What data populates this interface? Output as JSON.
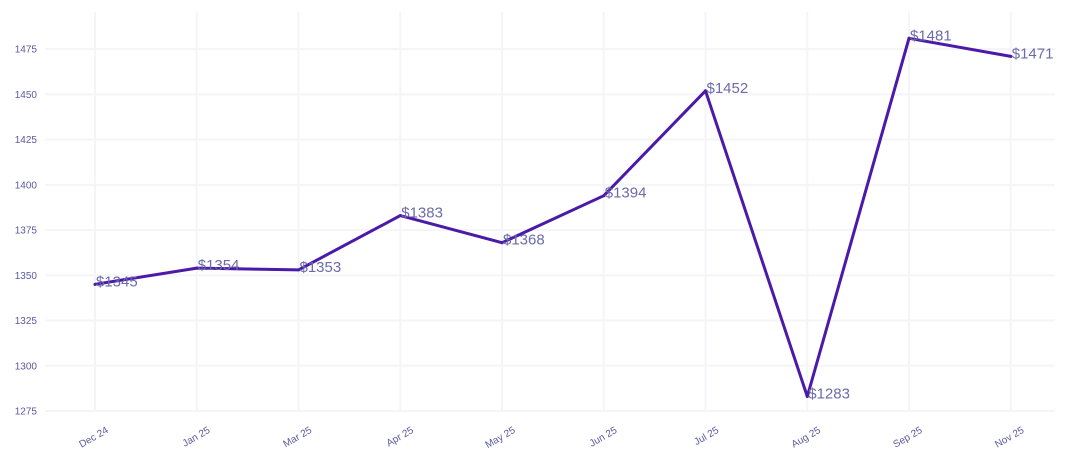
{
  "chart_data": {
    "type": "line",
    "title": "",
    "xlabel": "",
    "ylabel": "",
    "categories": [
      "Dec 24",
      "Jan 25",
      "Mar 25",
      "Apr 25",
      "May 25",
      "Jun 25",
      "Jul 25",
      "Aug 25",
      "Sep 25",
      "Nov 25"
    ],
    "series": [
      {
        "values": [
          1345,
          1354,
          1353,
          1383,
          1368,
          1394,
          1452,
          1283,
          1481,
          1471
        ],
        "color": "#4b1aa8"
      }
    ],
    "data_labels": [
      "$1345",
      "$1354",
      "$1353",
      "$1383",
      "$1368",
      "$1394",
      "$1452",
      "$1283",
      "$1481",
      "$1471"
    ],
    "ylim": [
      1275,
      1490
    ],
    "yticks": [
      1275,
      1300,
      1325,
      1350,
      1375,
      1400,
      1425,
      1450,
      1475
    ],
    "grid": true,
    "legend": "none"
  }
}
